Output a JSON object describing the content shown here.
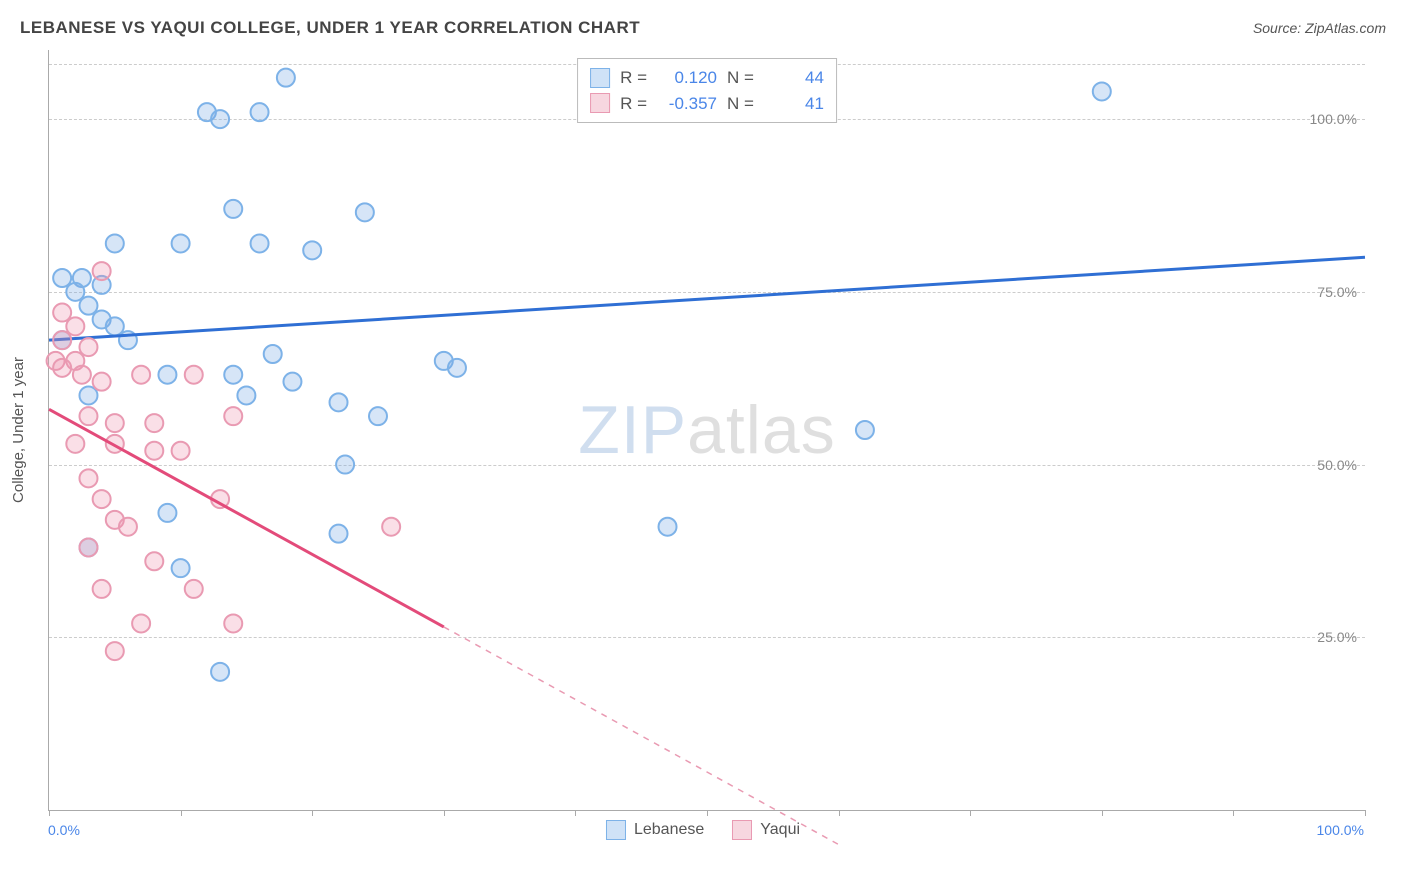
{
  "title": "LEBANESE VS YAQUI COLLEGE, UNDER 1 YEAR CORRELATION CHART",
  "source": "Source: ZipAtlas.com",
  "yAxisTitle": "College, Under 1 year",
  "watermark": {
    "part1": "ZIP",
    "part2": "atlas"
  },
  "chart": {
    "type": "scatter",
    "xlim": [
      0,
      100
    ],
    "ylim": [
      0,
      110
    ],
    "xTickStep": 10,
    "yGridlines": [
      25,
      50,
      75,
      100,
      108
    ],
    "yTickLabels": [
      {
        "value": 25,
        "label": "25.0%"
      },
      {
        "value": 50,
        "label": "50.0%"
      },
      {
        "value": 75,
        "label": "75.0%"
      },
      {
        "value": 100,
        "label": "100.0%"
      }
    ],
    "xLabelLeft": "0.0%",
    "xLabelRight": "100.0%",
    "background_color": "#ffffff",
    "grid_color": "#cccccc",
    "axis_color": "#aaaaaa",
    "marker_radius": 9,
    "marker_stroke_width": 2,
    "trend_line_width": 3
  },
  "series": [
    {
      "name": "Lebanese",
      "color_fill": "rgba(120,170,230,0.30)",
      "color_stroke": "#7db2e8",
      "swatch_fill": "#cfe2f7",
      "swatch_border": "#7db2e8",
      "R_label": "R =",
      "R_value": "0.120",
      "N_label": "N =",
      "N_value": "44",
      "trend": {
        "x1": 0,
        "y1": 68,
        "x2": 100,
        "y2": 80,
        "solid_until": 100
      },
      "points": [
        {
          "x": 18,
          "y": 106
        },
        {
          "x": 12,
          "y": 101
        },
        {
          "x": 13,
          "y": 100
        },
        {
          "x": 16,
          "y": 101
        },
        {
          "x": 80,
          "y": 104
        },
        {
          "x": 14,
          "y": 87
        },
        {
          "x": 24,
          "y": 86.5
        },
        {
          "x": 5,
          "y": 82
        },
        {
          "x": 10,
          "y": 82
        },
        {
          "x": 16,
          "y": 82
        },
        {
          "x": 20,
          "y": 81
        },
        {
          "x": 1,
          "y": 77
        },
        {
          "x": 2.5,
          "y": 77
        },
        {
          "x": 4,
          "y": 76
        },
        {
          "x": 2,
          "y": 75
        },
        {
          "x": 3,
          "y": 73
        },
        {
          "x": 4,
          "y": 71
        },
        {
          "x": 5,
          "y": 70
        },
        {
          "x": 1,
          "y": 68
        },
        {
          "x": 6,
          "y": 68
        },
        {
          "x": 17,
          "y": 66
        },
        {
          "x": 30,
          "y": 65
        },
        {
          "x": 31,
          "y": 64
        },
        {
          "x": 9,
          "y": 63
        },
        {
          "x": 14,
          "y": 63
        },
        {
          "x": 18.5,
          "y": 62
        },
        {
          "x": 3,
          "y": 60
        },
        {
          "x": 15,
          "y": 60
        },
        {
          "x": 22,
          "y": 59
        },
        {
          "x": 25,
          "y": 57
        },
        {
          "x": 22.5,
          "y": 50
        },
        {
          "x": 62,
          "y": 55
        },
        {
          "x": 47,
          "y": 41
        },
        {
          "x": 9,
          "y": 43
        },
        {
          "x": 22,
          "y": 40
        },
        {
          "x": 3,
          "y": 38
        },
        {
          "x": 10,
          "y": 35
        },
        {
          "x": 13,
          "y": 20
        }
      ]
    },
    {
      "name": "Yaqui",
      "color_fill": "rgba(240,150,175,0.30)",
      "color_stroke": "#e99ab2",
      "swatch_fill": "#f7d7e0",
      "swatch_border": "#e99ab2",
      "trend_color": "#e34b7a",
      "R_label": "R =",
      "R_value": "-0.357",
      "N_label": "N =",
      "N_value": "41",
      "trend": {
        "x1": 0,
        "y1": 58,
        "x2": 60,
        "y2": -5,
        "solid_until": 30
      },
      "points": [
        {
          "x": 4,
          "y": 78
        },
        {
          "x": 1,
          "y": 72
        },
        {
          "x": 2,
          "y": 70
        },
        {
          "x": 1,
          "y": 68
        },
        {
          "x": 0.5,
          "y": 65
        },
        {
          "x": 2,
          "y": 65
        },
        {
          "x": 3,
          "y": 67
        },
        {
          "x": 1,
          "y": 64
        },
        {
          "x": 2.5,
          "y": 63
        },
        {
          "x": 4,
          "y": 62
        },
        {
          "x": 7,
          "y": 63
        },
        {
          "x": 11,
          "y": 63
        },
        {
          "x": 3,
          "y": 57
        },
        {
          "x": 5,
          "y": 56
        },
        {
          "x": 8,
          "y": 56
        },
        {
          "x": 14,
          "y": 57
        },
        {
          "x": 2,
          "y": 53
        },
        {
          "x": 5,
          "y": 53
        },
        {
          "x": 8,
          "y": 52
        },
        {
          "x": 10,
          "y": 52
        },
        {
          "x": 3,
          "y": 48
        },
        {
          "x": 4,
          "y": 45
        },
        {
          "x": 13,
          "y": 45
        },
        {
          "x": 5,
          "y": 42
        },
        {
          "x": 6,
          "y": 41
        },
        {
          "x": 26,
          "y": 41
        },
        {
          "x": 3,
          "y": 38
        },
        {
          "x": 8,
          "y": 36
        },
        {
          "x": 4,
          "y": 32
        },
        {
          "x": 11,
          "y": 32
        },
        {
          "x": 7,
          "y": 27
        },
        {
          "x": 14,
          "y": 27
        },
        {
          "x": 5,
          "y": 23
        }
      ]
    }
  ],
  "legend": {
    "item1": "Lebanese",
    "item2": "Yaqui"
  }
}
